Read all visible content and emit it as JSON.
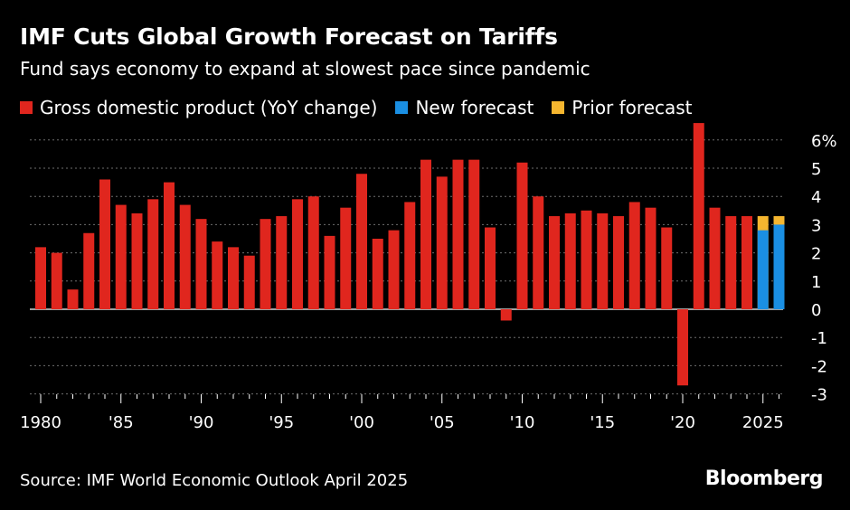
{
  "header": {
    "title": "IMF Cuts Global Growth Forecast on Tariffs",
    "subtitle": "Fund says economy to expand at slowest pace since pandemic"
  },
  "footer": {
    "source": "Source: IMF World Economic Outlook April 2025",
    "brand": "Bloomberg"
  },
  "chart_data": {
    "type": "bar",
    "title": "IMF Cuts Global Growth Forecast on Tariffs",
    "subtitle": "Fund says economy to expand at slowest pace since pandemic",
    "x": [
      1980,
      1981,
      1982,
      1983,
      1984,
      1985,
      1986,
      1987,
      1988,
      1989,
      1990,
      1991,
      1992,
      1993,
      1994,
      1995,
      1996,
      1997,
      1998,
      1999,
      2000,
      2001,
      2002,
      2003,
      2004,
      2005,
      2006,
      2007,
      2008,
      2009,
      2010,
      2011,
      2012,
      2013,
      2014,
      2015,
      2016,
      2017,
      2018,
      2019,
      2020,
      2021,
      2022,
      2023,
      2024,
      2025,
      2026
    ],
    "series": [
      {
        "name": "Gross domestic product (YoY change)",
        "color": "#e0261e",
        "values": [
          2.2,
          2.0,
          0.7,
          2.7,
          4.6,
          3.7,
          3.4,
          3.9,
          4.5,
          3.7,
          3.2,
          2.4,
          2.2,
          1.9,
          3.2,
          3.3,
          3.9,
          4.0,
          2.6,
          3.6,
          4.8,
          2.5,
          2.8,
          3.8,
          5.3,
          4.7,
          5.3,
          5.3,
          2.9,
          -0.4,
          5.2,
          4.0,
          3.3,
          3.4,
          3.5,
          3.4,
          3.3,
          3.8,
          3.6,
          2.9,
          -2.7,
          6.6,
          3.6,
          3.3,
          3.3,
          null,
          null
        ]
      },
      {
        "name": "New forecast",
        "color": "#1a8fe3",
        "values": [
          null,
          null,
          null,
          null,
          null,
          null,
          null,
          null,
          null,
          null,
          null,
          null,
          null,
          null,
          null,
          null,
          null,
          null,
          null,
          null,
          null,
          null,
          null,
          null,
          null,
          null,
          null,
          null,
          null,
          null,
          null,
          null,
          null,
          null,
          null,
          null,
          null,
          null,
          null,
          null,
          null,
          null,
          null,
          null,
          null,
          2.8,
          3.0
        ]
      },
      {
        "name": "Prior forecast",
        "color": "#f5b62f",
        "values": [
          null,
          null,
          null,
          null,
          null,
          null,
          null,
          null,
          null,
          null,
          null,
          null,
          null,
          null,
          null,
          null,
          null,
          null,
          null,
          null,
          null,
          null,
          null,
          null,
          null,
          null,
          null,
          null,
          null,
          null,
          null,
          null,
          null,
          null,
          null,
          null,
          null,
          null,
          null,
          null,
          null,
          null,
          null,
          null,
          null,
          3.3,
          3.3
        ]
      }
    ],
    "x_tick_labels": [
      {
        "year": 1980,
        "label": "1980"
      },
      {
        "year": 1985,
        "label": "'85"
      },
      {
        "year": 1990,
        "label": "'90"
      },
      {
        "year": 1995,
        "label": "'95"
      },
      {
        "year": 2000,
        "label": "'00"
      },
      {
        "year": 2005,
        "label": "'05"
      },
      {
        "year": 2010,
        "label": "'10"
      },
      {
        "year": 2015,
        "label": "'15"
      },
      {
        "year": 2020,
        "label": "'20"
      },
      {
        "year": 2025,
        "label": "2025"
      }
    ],
    "y_ticks": [
      {
        "value": 6,
        "label": "6%"
      },
      {
        "value": 5,
        "label": "5"
      },
      {
        "value": 4,
        "label": "4"
      },
      {
        "value": 3,
        "label": "3"
      },
      {
        "value": 2,
        "label": "2"
      },
      {
        "value": 1,
        "label": "1"
      },
      {
        "value": 0,
        "label": "0"
      },
      {
        "value": -1,
        "label": "-1"
      },
      {
        "value": -2,
        "label": "-2"
      },
      {
        "value": -3,
        "label": "-3"
      }
    ],
    "ylim": [
      -3,
      6.5
    ],
    "grid": true,
    "legend_position": "top-left",
    "colors": {
      "background": "#000000",
      "grid": "#6e6e6e",
      "text": "#ffffff"
    }
  }
}
